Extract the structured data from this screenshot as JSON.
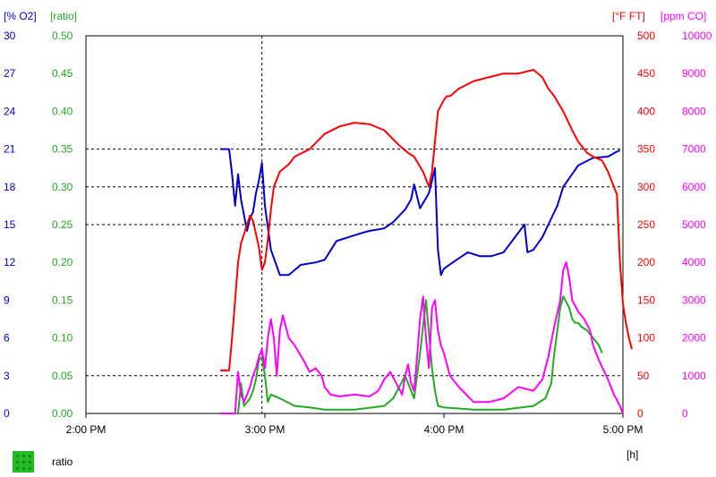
{
  "chart_data": {
    "type": "line",
    "title": "",
    "x_axis": {
      "ticks": [
        "2:00 PM",
        "3:00 PM",
        "4:00 PM",
        "5:00 PM"
      ],
      "unit_label": "[h]",
      "range": [
        "14:00",
        "17:00"
      ],
      "cursor": "14:59"
    },
    "axes": [
      {
        "id": "o2",
        "label": "[% O2]",
        "color": "#0000cc",
        "side": "left",
        "ticks": [
          "0",
          "3",
          "6",
          "9",
          "12",
          "15",
          "18",
          "21",
          "24",
          "27",
          "30"
        ],
        "range": [
          0,
          30
        ]
      },
      {
        "id": "ratio",
        "label": "[ratio]",
        "color": "#22aa22",
        "side": "left",
        "ticks": [
          "0.00",
          "0.05",
          "0.10",
          "0.15",
          "0.20",
          "0.25",
          "0.30",
          "0.35",
          "0.40",
          "0.45",
          "0.50"
        ],
        "range": [
          0,
          0.5
        ]
      },
      {
        "id": "ft",
        "label": "[°F FT]",
        "color": "#ff0000",
        "side": "right",
        "ticks": [
          "0",
          "50",
          "100",
          "150",
          "200",
          "250",
          "300",
          "350",
          "400",
          "450",
          "500"
        ],
        "range": [
          0,
          500
        ]
      },
      {
        "id": "co",
        "label": "[ppm CO]",
        "color": "#ff00ff",
        "side": "right",
        "ticks": [
          "0",
          "1000",
          "2000",
          "3000",
          "4000",
          "5000",
          "6000",
          "7000",
          "8000",
          "9000",
          "10000"
        ],
        "range": [
          0,
          10000
        ]
      }
    ],
    "dashed_gridlines": {
      "axis": "o2",
      "values": [
        3,
        15,
        18,
        21
      ]
    },
    "legend": {
      "placement": "bottom-left",
      "items": [
        {
          "label": "ratio",
          "color": "#22bb22"
        }
      ]
    },
    "series": [
      {
        "axis": "o2",
        "color": "#0000cc",
        "x": [
          "14:45",
          "14:48",
          "14:49",
          "14:50",
          "14:51",
          "14:52",
          "14:54",
          "14:55",
          "14:56",
          "14:57",
          "14:58",
          "14:59",
          "15:00",
          "15:02",
          "15:05",
          "15:08",
          "15:12",
          "15:17",
          "15:20",
          "15:24",
          "15:28",
          "15:32",
          "15:35",
          "15:40",
          "15:43",
          "15:45",
          "15:47",
          "15:49",
          "15:50",
          "15:52",
          "15:55",
          "15:56",
          "15:57",
          "15:58",
          "15:59",
          "16:00",
          "16:03",
          "16:08",
          "16:12",
          "16:16",
          "16:20",
          "16:27",
          "16:28",
          "16:29",
          "16:30",
          "16:33",
          "16:36",
          "16:38",
          "16:40",
          "16:45",
          "16:50",
          "16:55",
          "16:58",
          "16:59"
        ],
        "y": [
          21.0,
          21.0,
          19.0,
          16.5,
          19.0,
          17.0,
          14.5,
          15.5,
          16.0,
          17.5,
          18.5,
          19.9,
          16.5,
          13.0,
          11.0,
          11.0,
          11.8,
          12.0,
          12.2,
          13.7,
          14.0,
          14.3,
          14.5,
          14.7,
          15.2,
          15.7,
          16.2,
          17.0,
          18.2,
          16.3,
          17.5,
          18.5,
          19.5,
          13.0,
          11.0,
          11.5,
          12.0,
          12.8,
          12.5,
          12.5,
          12.8,
          15.0,
          12.8,
          12.9,
          13.0,
          14.0,
          15.5,
          16.5,
          18.0,
          19.7,
          20.3,
          20.4,
          20.8,
          20.9
        ]
      },
      {
        "axis": "ratio",
        "color": "#22aa22",
        "x": [
          "14:51",
          "14:52",
          "14:53",
          "14:54",
          "14:55",
          "14:56",
          "14:57",
          "14:58",
          "14:59",
          "15:00",
          "15:01",
          "15:02",
          "15:05",
          "15:10",
          "15:15",
          "15:20",
          "15:30",
          "15:40",
          "15:43",
          "15:45",
          "15:47",
          "15:48",
          "15:50",
          "15:52",
          "15:54",
          "15:56",
          "15:57",
          "15:58",
          "16:00",
          "16:10",
          "16:20",
          "16:30",
          "16:34",
          "16:36",
          "16:37",
          "16:38",
          "16:39",
          "16:40",
          "16:42",
          "16:43",
          "16:44",
          "16:45",
          "16:46",
          "16:48",
          "16:50",
          "16:52",
          "16:53"
        ],
        "y": [
          0.0,
          0.04,
          0.01,
          0.015,
          0.02,
          0.03,
          0.045,
          0.07,
          0.075,
          0.05,
          0.015,
          0.025,
          0.02,
          0.01,
          0.008,
          0.005,
          0.005,
          0.01,
          0.02,
          0.035,
          0.05,
          0.04,
          0.02,
          0.08,
          0.15,
          0.06,
          0.03,
          0.01,
          0.008,
          0.005,
          0.005,
          0.01,
          0.02,
          0.04,
          0.08,
          0.11,
          0.14,
          0.155,
          0.14,
          0.125,
          0.12,
          0.12,
          0.115,
          0.11,
          0.1,
          0.09,
          0.08
        ]
      },
      {
        "axis": "ft",
        "color": "#ff0000",
        "x": [
          "14:45",
          "14:48",
          "14:49",
          "14:50",
          "14:51",
          "14:52",
          "14:54",
          "14:55",
          "14:56",
          "14:58",
          "14:59",
          "15:00",
          "15:01",
          "15:02",
          "15:03",
          "15:05",
          "15:08",
          "15:10",
          "15:15",
          "15:20",
          "15:25",
          "15:30",
          "15:35",
          "15:40",
          "15:45",
          "15:48",
          "15:50",
          "15:53",
          "15:55",
          "15:56",
          "15:58",
          "16:00",
          "16:01",
          "16:02",
          "16:05",
          "16:10",
          "16:15",
          "16:20",
          "16:25",
          "16:30",
          "16:33",
          "16:35",
          "16:37",
          "16:40",
          "16:43",
          "16:45",
          "16:48",
          "16:50",
          "16:53",
          "16:55",
          "16:58",
          "16:59",
          "17:00",
          "17:01",
          "17:02",
          "17:03"
        ],
        "y": [
          57,
          57,
          100,
          150,
          200,
          225,
          250,
          262,
          255,
          220,
          190,
          200,
          230,
          270,
          300,
          320,
          330,
          340,
          350,
          370,
          380,
          385,
          383,
          375,
          355,
          345,
          340,
          320,
          300,
          320,
          400,
          415,
          420,
          420,
          430,
          440,
          445,
          450,
          450,
          455,
          445,
          430,
          420,
          400,
          375,
          360,
          345,
          340,
          335,
          320,
          290,
          200,
          145,
          120,
          100,
          85
        ]
      },
      {
        "axis": "co",
        "color": "#ff00ff",
        "x": [
          "14:45",
          "14:50",
          "14:51",
          "14:52",
          "14:53",
          "14:55",
          "14:56",
          "14:57",
          "14:58",
          "14:59",
          "15:00",
          "15:01",
          "15:02",
          "15:03",
          "15:04",
          "15:05",
          "15:06",
          "15:07",
          "15:08",
          "15:10",
          "15:13",
          "15:15",
          "15:17",
          "15:19",
          "15:20",
          "15:22",
          "15:25",
          "15:30",
          "15:35",
          "15:38",
          "15:40",
          "15:42",
          "15:44",
          "15:46",
          "15:47",
          "15:48",
          "15:49",
          "15:50",
          "15:51",
          "15:52",
          "15:53",
          "15:54",
          "15:55",
          "15:56",
          "15:57",
          "15:58",
          "15:59",
          "16:00",
          "16:02",
          "16:05",
          "16:10",
          "16:15",
          "16:20",
          "16:25",
          "16:30",
          "16:33",
          "16:35",
          "16:37",
          "16:39",
          "16:40",
          "16:41",
          "16:42",
          "16:43",
          "16:45",
          "16:47",
          "16:49",
          "16:50",
          "16:52",
          "16:55",
          "16:57",
          "16:59",
          "17:00"
        ],
        "y": [
          0,
          0,
          1100,
          500,
          300,
          700,
          1000,
          1200,
          1500,
          1700,
          1200,
          2000,
          2500,
          2000,
          1000,
          2200,
          2600,
          2300,
          2000,
          1800,
          1400,
          1100,
          1200,
          1000,
          700,
          500,
          450,
          500,
          450,
          600,
          900,
          1100,
          800,
          500,
          1000,
          1300,
          800,
          600,
          1500,
          2500,
          3100,
          2000,
          1200,
          2800,
          3000,
          2200,
          1800,
          1600,
          1000,
          700,
          300,
          300,
          400,
          700,
          600,
          900,
          1500,
          2300,
          3000,
          3800,
          4000,
          3600,
          3000,
          2700,
          2500,
          2200,
          1800,
          1400,
          900,
          500,
          200,
          0
        ]
      }
    ]
  }
}
